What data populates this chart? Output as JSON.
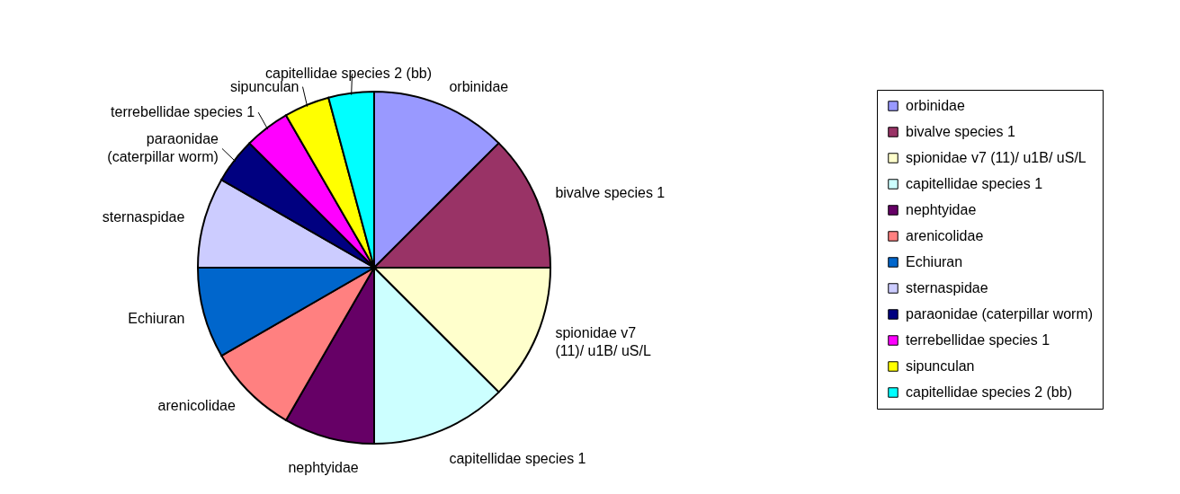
{
  "chart_data": {
    "type": "pie",
    "categories": [
      "orbinidae",
      "bivalve species 1",
      "spionidae v7 (11)/ u1B/ uS/L",
      "capitellidae species 1",
      "nephtyidae",
      "arenicolidae",
      "Echiuran",
      "sternaspidae",
      "paraonidae (caterpillar worm)",
      "terrebellidae species 1",
      "sipunculan",
      "capitellidae species 2 (bb)"
    ],
    "values": [
      12.5,
      12.5,
      12.5,
      12.5,
      8.33,
      8.33,
      8.33,
      8.33,
      4.17,
      4.17,
      4.17,
      4.17
    ],
    "colors": [
      "#9999ff",
      "#993366",
      "#ffffcc",
      "#ccffff",
      "#660066",
      "#ff8080",
      "#0066cc",
      "#ccccff",
      "#000080",
      "#ff00ff",
      "#ffff00",
      "#00ffff"
    ],
    "legend": "right"
  }
}
